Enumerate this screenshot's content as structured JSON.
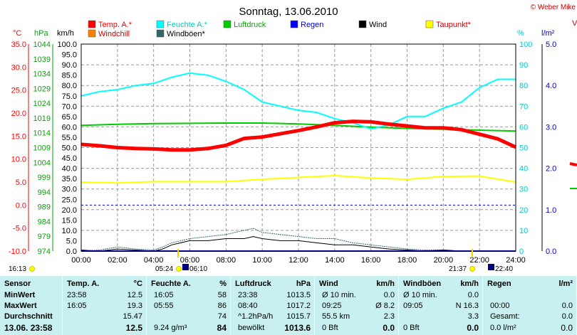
{
  "header": {
    "title": "Sonntag, 13.06.2010",
    "credit": "© Weber Mike",
    "cut_label": "V"
  },
  "colors": {
    "temp": "#ff0000",
    "humidity": "#00ffff",
    "pressure": "#00cc00",
    "rain": "#0000ff",
    "wind": "#000000",
    "dewpoint": "#ffff00",
    "windchill": "#ff8000",
    "gust": "#336666",
    "table_bg": "#c8f0f0",
    "grid": "#999999",
    "frost": "#0000cc"
  },
  "axis_units": {
    "temp": "°C",
    "pressure": "hPa",
    "wind": "km/h",
    "humidity": "%",
    "rain": "l/m²"
  },
  "legend": [
    {
      "label": "Temp. A.*",
      "color": "#ff0000",
      "text_color": "#ff0000"
    },
    {
      "label": "Feuchte A.*",
      "color": "#00ffff",
      "text_color": "#00cccc"
    },
    {
      "label": "Luftdruck",
      "color": "#00cc00",
      "text_color": "#00aa00"
    },
    {
      "label": "Regen",
      "color": "#0000ff",
      "text_color": "#0000cc"
    },
    {
      "label": "Wind",
      "color": "#000000",
      "text_color": "#000000"
    },
    {
      "label": "Taupunkt*",
      "color": "#ffff00",
      "text_color": "#cc0000"
    },
    {
      "label": "Windchill",
      "color": "#ff8000",
      "text_color": "#cc0000"
    },
    {
      "label": "Windböen*",
      "color": "#336666",
      "text_color": "#000000"
    }
  ],
  "sun": {
    "left_time": "16:13",
    "sunrise": "05:24",
    "sunrise_civil": "06:10",
    "sunset": "21:37",
    "sunset_civil": "22:40"
  },
  "chart_data": {
    "type": "line",
    "title": "Sonntag, 13.06.2010",
    "x_ticks": [
      "00:00",
      "02:00",
      "04:00",
      "06:00",
      "08:00",
      "10:00",
      "12:00",
      "14:00",
      "16:00",
      "18:00",
      "20:00",
      "22:00",
      "24:00"
    ],
    "xlim": [
      0,
      24
    ],
    "axes": {
      "temp": {
        "unit": "°C",
        "ticks": [
          "35.0",
          "30.0",
          "25.0",
          "20.0",
          "15.0",
          "10.0",
          "5.0",
          "0.0",
          "-5.0",
          "-10.0"
        ],
        "ylim": [
          -10,
          35
        ]
      },
      "pressure": {
        "unit": "hPa",
        "ticks": [
          "1044",
          "1039",
          "1034",
          "1029",
          "1024",
          "1019",
          "1014",
          "1009",
          "1004",
          "999",
          "994",
          "989",
          "984",
          "979",
          "974"
        ],
        "ylim": [
          974,
          1044
        ]
      },
      "wind": {
        "unit": "km/h",
        "ticks": [
          "100.0",
          "95.0",
          "90.0",
          "85.0",
          "80.0",
          "75.0",
          "70.0",
          "65.0",
          "60.0",
          "55.0",
          "50.0",
          "45.0",
          "40.0",
          "35.0",
          "30.0",
          "25.0",
          "20.0",
          "15.0",
          "10.0",
          "5.0",
          "0.0"
        ],
        "ylim": [
          0,
          100
        ]
      },
      "humidity": {
        "unit": "%",
        "ticks": [
          "100",
          "90",
          "80",
          "70",
          "60",
          "50",
          "40",
          "30",
          "20",
          "10",
          "0"
        ],
        "ylim": [
          0,
          100
        ]
      },
      "rain": {
        "unit": "l/m²",
        "ticks": [
          "5.0",
          "4.0",
          "3.0",
          "2.0",
          "1.0",
          "0.0"
        ],
        "ylim": [
          0,
          5
        ]
      }
    },
    "frost_line": 0,
    "series": [
      {
        "name": "Temp. A.*",
        "axis": "temp",
        "color": "#ff0000",
        "width": 5,
        "x": [
          0,
          1,
          2,
          3,
          4,
          5,
          6,
          7,
          8,
          9,
          10,
          11,
          12,
          13,
          14,
          15,
          16,
          17,
          18,
          19,
          20,
          21,
          22,
          23,
          24
        ],
        "y": [
          13.2,
          12.9,
          12.5,
          12.3,
          12.2,
          12.0,
          12.0,
          12.3,
          13.0,
          14.5,
          14.8,
          15.5,
          16.2,
          17.0,
          17.9,
          18.2,
          18.1,
          17.6,
          17.2,
          16.8,
          16.8,
          16.4,
          15.4,
          14.4,
          12.6
        ]
      },
      {
        "name": "Feuchte A.*",
        "axis": "humidity",
        "color": "#00ffff",
        "width": 2,
        "x": [
          0,
          1,
          2,
          3,
          4,
          5,
          6,
          7,
          8,
          9,
          10,
          11,
          12,
          13,
          14,
          15,
          16,
          17,
          18,
          19,
          20,
          21,
          22,
          23,
          24
        ],
        "y": [
          75,
          77,
          78,
          80,
          81,
          84,
          86,
          85,
          82,
          78,
          72,
          70,
          68,
          67,
          64,
          62,
          59,
          61,
          65,
          65,
          69,
          72,
          79,
          83,
          83
        ]
      },
      {
        "name": "Luftdruck",
        "axis": "pressure",
        "color": "#00cc00",
        "width": 2,
        "x": [
          0,
          2,
          4,
          6,
          8,
          10,
          12,
          14,
          16,
          18,
          20,
          22,
          24
        ],
        "y": [
          1016.5,
          1016.9,
          1017.1,
          1017.2,
          1017.3,
          1017.3,
          1017.0,
          1016.5,
          1015.9,
          1015.5,
          1015.2,
          1014.9,
          1014.6
        ]
      },
      {
        "name": "Taupunkt*",
        "axis": "temp",
        "color": "#ffff00",
        "width": 2,
        "x": [
          0,
          2,
          4,
          6,
          8,
          10,
          12,
          14,
          16,
          18,
          20,
          22,
          24
        ],
        "y": [
          5.0,
          4.8,
          5.1,
          5.1,
          5.1,
          5.6,
          6.0,
          6.4,
          5.9,
          5.6,
          6.2,
          6.3,
          5.0
        ]
      },
      {
        "name": "Windböen*",
        "axis": "wind",
        "color": "#336666",
        "width": 1,
        "x": [
          0,
          1,
          2,
          3,
          4,
          4.5,
          5,
          6,
          7,
          8,
          9,
          9.5,
          10,
          11,
          12,
          13,
          14,
          15,
          16,
          17,
          18,
          19,
          20,
          21,
          22,
          23,
          24
        ],
        "y": [
          0,
          0.5,
          2,
          1,
          0.5,
          2,
          4,
          6,
          7,
          8,
          10,
          11,
          9,
          8,
          7,
          6,
          6,
          4,
          3,
          2,
          1,
          0.5,
          0.5,
          0,
          0,
          0,
          0
        ]
      },
      {
        "name": "Wind",
        "axis": "wind",
        "color": "#000000",
        "width": 1,
        "x": [
          0,
          1,
          2,
          3,
          4,
          4.5,
          5,
          6,
          7,
          8,
          9,
          9.5,
          10,
          11,
          12,
          13,
          14,
          15,
          16,
          17,
          18,
          19,
          20,
          21,
          22,
          23,
          24
        ],
        "y": [
          0.5,
          0,
          1,
          0.5,
          0,
          1,
          3,
          5,
          5,
          6,
          6,
          7,
          6,
          5,
          5,
          4,
          3,
          3,
          2,
          1,
          0.5,
          0,
          0.5,
          0,
          0,
          0,
          0
        ]
      },
      {
        "name": "Regen",
        "axis": "rain",
        "color": "#0000ff",
        "width": 2,
        "x": [
          0,
          24
        ],
        "y": [
          0,
          0
        ]
      }
    ],
    "grid": true
  },
  "table": {
    "headers": {
      "sensor": "Sensor",
      "temp": "Temp. A.",
      "temp_unit": "°C",
      "hum": "Feuchte A.",
      "hum_unit": "%",
      "press": "Luftdruck",
      "press_unit": "hPa",
      "wind": "Wind",
      "wind_unit": "km/h",
      "gust": "Windböen",
      "gust_unit": "km/h",
      "rain": "Regen",
      "rain_unit": "l/m²"
    },
    "rows": [
      {
        "label": "MinWert",
        "temp_time": "23:58",
        "temp_val": "12.5",
        "hum_time": "16:05",
        "hum_val": "58",
        "press_time": "23:38",
        "press_val": "1013.5",
        "wind_time": "Ø 10 min.",
        "wind_val": "0.0",
        "gust_time": "Ø 10 min.",
        "gust_val": "0.0",
        "rain_time": "",
        "rain_val": ""
      },
      {
        "label": "MaxWert",
        "temp_time": "16:05",
        "temp_val": "19.3",
        "hum_time": "05:55",
        "hum_val": "86",
        "press_time": "08:40",
        "press_val": "1017.2",
        "wind_time": "09:25",
        "wind_val": "Ø 8.2",
        "gust_time": "09:05",
        "gust_val": "N 16.3",
        "rain_time": "00:00",
        "rain_val": "0.0"
      },
      {
        "label": "Durchschnitt",
        "temp_time": "",
        "temp_val": "15.47",
        "hum_time": "",
        "hum_val": "74",
        "press_time": "^1.2hPa/h",
        "press_val": "1015.7",
        "wind_time": "55.5 km",
        "wind_val": "2.3",
        "gust_time": "",
        "gust_val": "3.3",
        "rain_time": "Gesamt:",
        "rain_val": "0.0"
      },
      {
        "label": "13.06. 23:58",
        "temp_time": "",
        "temp_val": "12.5",
        "hum_time": "9.24 g/m³",
        "hum_val": "84",
        "press_time": "bewölkt",
        "press_val": "1013.6",
        "wind_time": "0 Bft",
        "wind_val": "0.0",
        "gust_time": "0 Bft",
        "gust_val": "0.0",
        "rain_time": "0.0 l/m²",
        "rain_val": "0.0"
      }
    ]
  }
}
